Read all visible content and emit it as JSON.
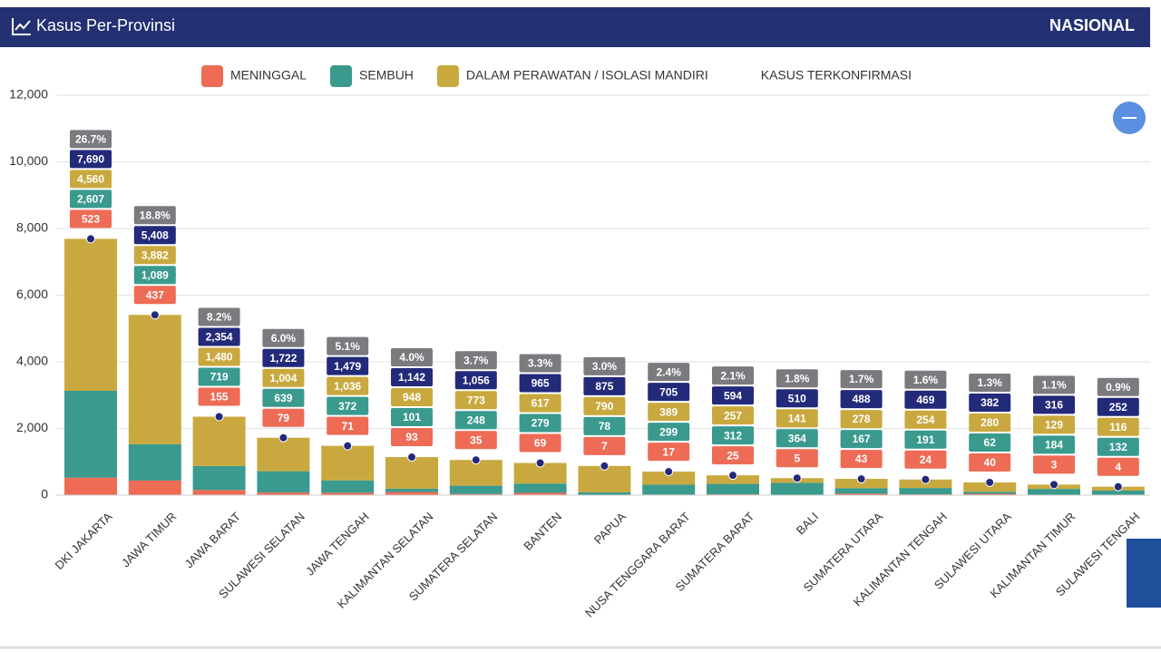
{
  "header": {
    "title": "Kasus Per-Provinsi",
    "scope": "NASIONAL"
  },
  "chart_data": {
    "type": "stacked-bar",
    "categories": [
      "DKI JAKARTA",
      "JAWA TIMUR",
      "JAWA BARAT",
      "SULAWESI SELATAN",
      "JAWA TENGAH",
      "KALIMANTAN SELATAN",
      "SUMATERA SELATAN",
      "BANTEN",
      "PAPUA",
      "NUSA TENGGARA BARAT",
      "SUMATERA BARAT",
      "BALI",
      "SUMATERA UTARA",
      "KALIMANTAN TENGAH",
      "SULAWESI UTARA",
      "KALIMANTAN TIMUR",
      "SULAWESI TENGAH"
    ],
    "series": [
      {
        "name": "MENINGGAL",
        "color": "#ee6b55",
        "values": [
          523,
          437,
          155,
          79,
          71,
          93,
          35,
          69,
          7,
          17,
          25,
          5,
          43,
          24,
          40,
          3,
          4
        ]
      },
      {
        "name": "SEMBUH",
        "color": "#3a9a8e",
        "values": [
          2607,
          1089,
          719,
          639,
          372,
          101,
          248,
          279,
          78,
          299,
          312,
          364,
          167,
          191,
          62,
          184,
          132
        ],
        "value_labels": [
          "2,607",
          "1,089",
          "719",
          "639",
          "372",
          "101",
          "248",
          "279",
          "78",
          "299",
          "312",
          "364",
          "167",
          "191",
          "62",
          "184",
          "132"
        ]
      },
      {
        "name": "DALAM PERAWATAN / ISOLASI MANDIRI",
        "color": "#c9a93f",
        "values": [
          4560,
          3882,
          1480,
          1004,
          1036,
          948,
          773,
          617,
          790,
          389,
          257,
          141,
          278,
          254,
          280,
          129,
          116
        ],
        "value_labels": [
          "4,560",
          "3,882",
          "1,480",
          "1,004",
          "1,036",
          "948",
          "773",
          "617",
          "790",
          "389",
          "257",
          "141",
          "278",
          "254",
          "280",
          "129",
          "116"
        ]
      }
    ],
    "confirmed": {
      "name": "KASUS TERKONFIRMASI",
      "color": "#232a7a",
      "values": [
        7690,
        5408,
        2354,
        1722,
        1479,
        1142,
        1056,
        965,
        875,
        705,
        594,
        510,
        488,
        469,
        382,
        316,
        252
      ],
      "value_labels": [
        "7,690",
        "5,408",
        "2,354",
        "1,722",
        "1,479",
        "1,142",
        "1,056",
        "965",
        "875",
        "705",
        "594",
        "510",
        "488",
        "469",
        "382",
        "316",
        "252"
      ]
    },
    "share": {
      "color": "#7b7b7f",
      "values": [
        26.7,
        18.8,
        8.2,
        6.0,
        5.1,
        4.0,
        3.7,
        3.3,
        3.0,
        2.4,
        2.1,
        1.8,
        1.7,
        1.6,
        1.3,
        1.1,
        0.9
      ],
      "value_labels": [
        "26.7%",
        "18.8%",
        "8.2%",
        "6.0%",
        "5.1%",
        "4.0%",
        "3.7%",
        "3.3%",
        "3.0%",
        "2.4%",
        "2.1%",
        "1.8%",
        "1.7%",
        "1.6%",
        "1.3%",
        "1.1%",
        "0.9%"
      ]
    },
    "ylim": [
      0,
      12000
    ],
    "yticks": [
      0,
      {
        "value": 2000,
        "label": "2,000"
      },
      {
        "value": 4000,
        "label": "4,000"
      },
      {
        "value": 6000,
        "label": "6,000"
      },
      {
        "value": 8000,
        "label": "8,000"
      },
      {
        "value": 10000,
        "label": "10,000"
      },
      {
        "value": 12000,
        "label": "12,000"
      }
    ],
    "grid": true
  }
}
